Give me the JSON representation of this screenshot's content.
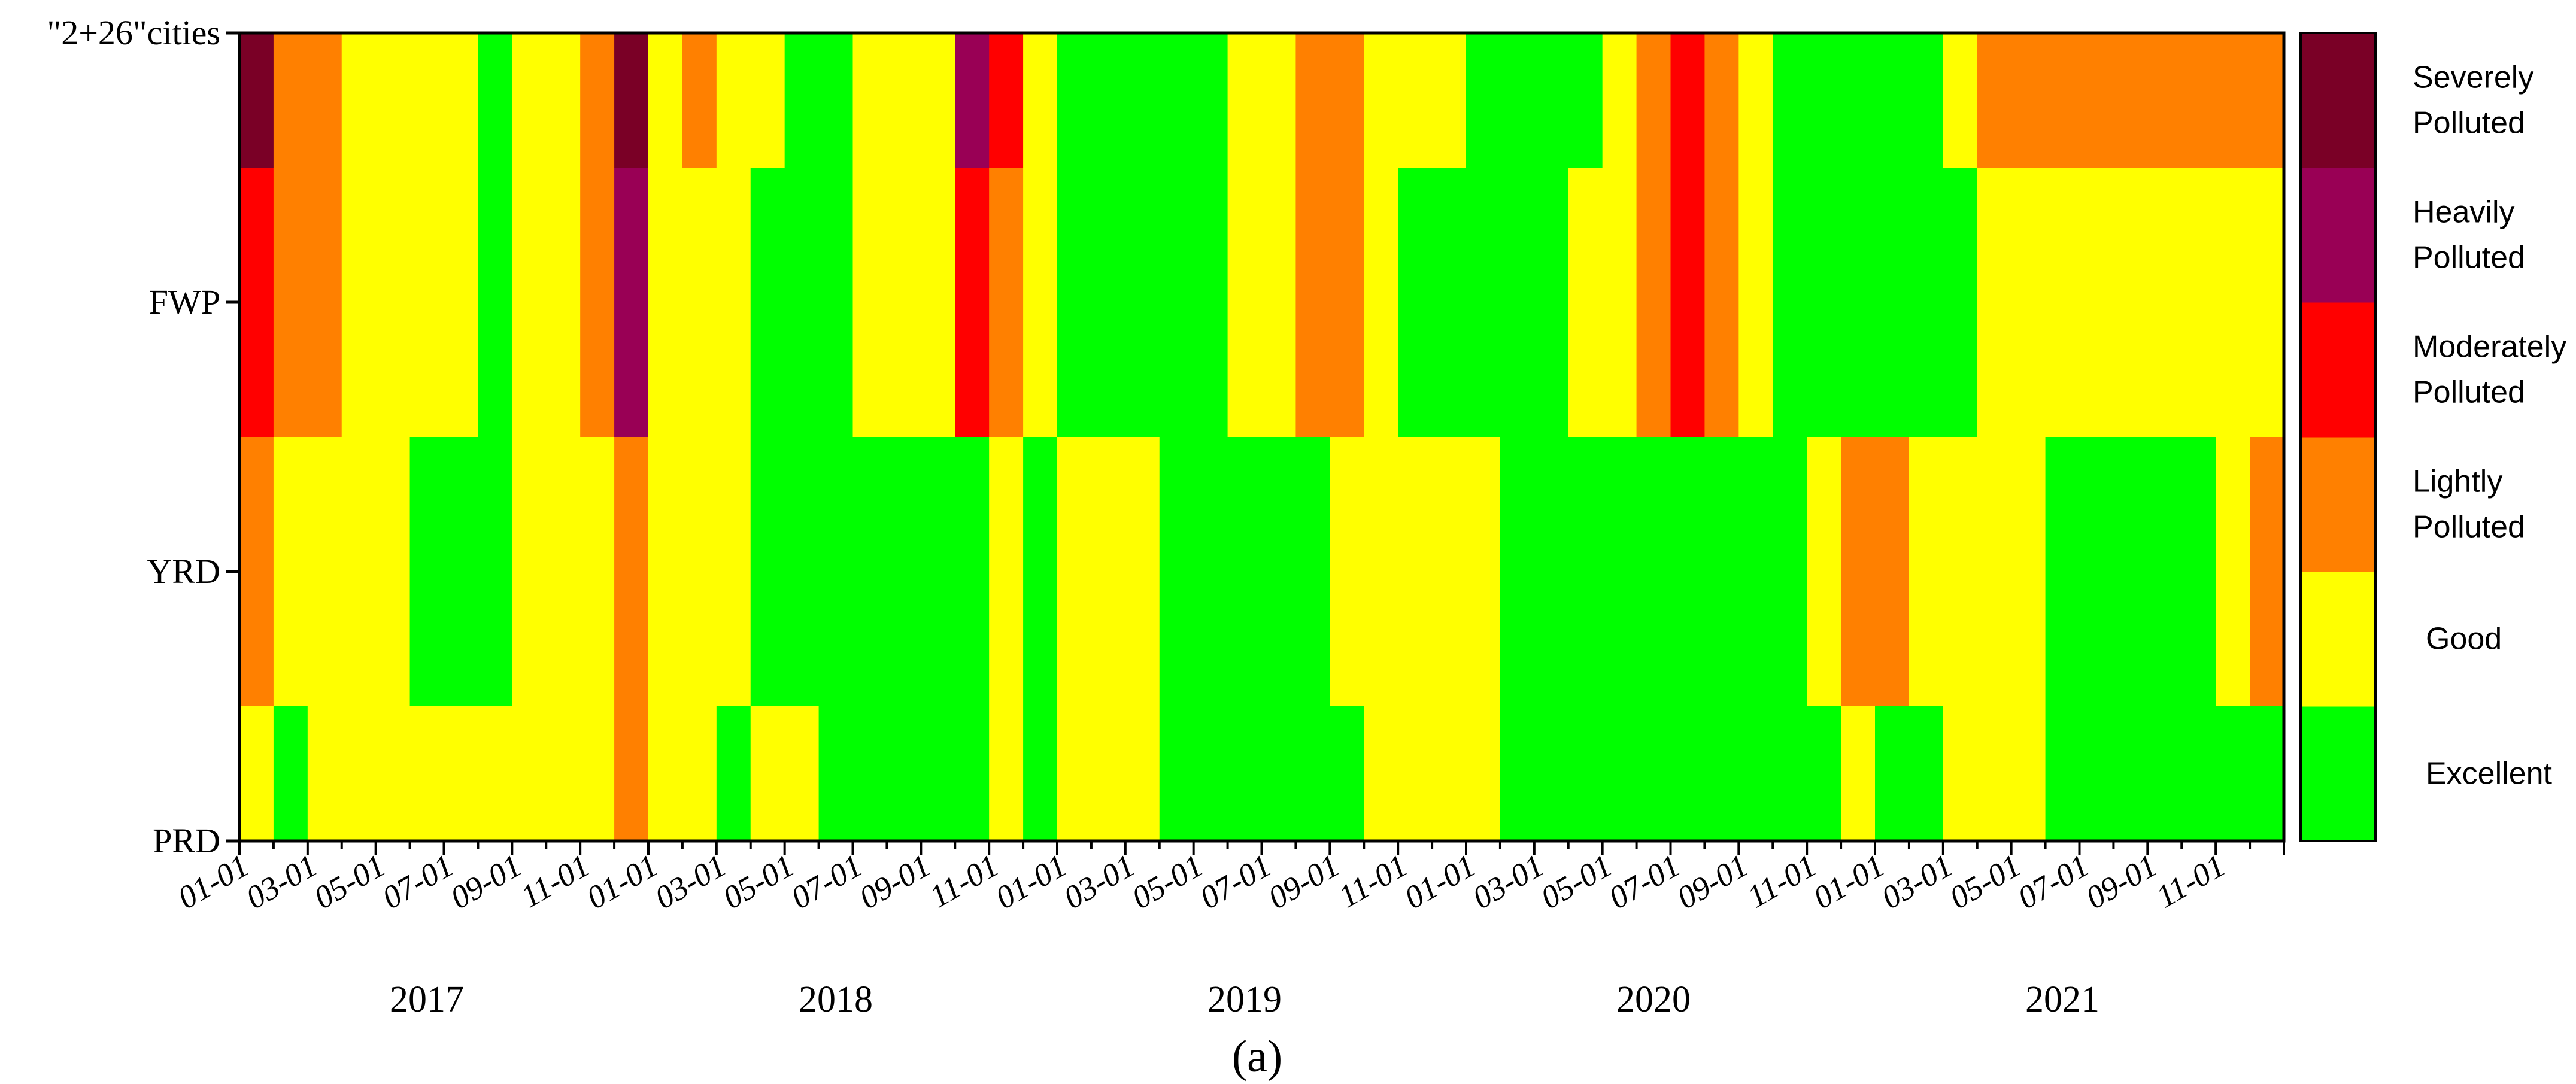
{
  "chart_data": {
    "type": "heatmap",
    "title": "",
    "caption": "(a)",
    "xlabel": "",
    "ylabel": "",
    "y_categories": [
      "PRD",
      "YRD",
      "FWP",
      "\"2+26\"cities"
    ],
    "month_tick_labels": [
      "01-01",
      "03-01",
      "05-01",
      "07-01",
      "09-01",
      "11-01"
    ],
    "years": [
      "2017",
      "2018",
      "2019",
      "2020",
      "2021"
    ],
    "x_range": [
      "2017-01-01",
      "2021-12-31"
    ],
    "levels": [
      {
        "value": 0,
        "label_lines": [
          "Excellent"
        ],
        "color": "#00ff00"
      },
      {
        "value": 1,
        "label_lines": [
          "Good"
        ],
        "color": "#ffff00"
      },
      {
        "value": 2,
        "label_lines": [
          "Lightly",
          "Polluted"
        ],
        "color": "#ff8000"
      },
      {
        "value": 3,
        "label_lines": [
          "Moderately",
          "Polluted"
        ],
        "color": "#ff0000"
      },
      {
        "value": 4,
        "label_lines": [
          "Heavily",
          "Polluted"
        ],
        "color": "#990055"
      },
      {
        "value": 5,
        "label_lines": [
          "Severely",
          "Polluted"
        ],
        "color": "#7a0026"
      }
    ],
    "series": [
      {
        "name": "PRD",
        "values": [
          1,
          0,
          1,
          1,
          1,
          1,
          1,
          1,
          1,
          1,
          1,
          2,
          1,
          1,
          0,
          1,
          1,
          0,
          0,
          0,
          0,
          0,
          1,
          0,
          1,
          1,
          1,
          0,
          0,
          0,
          0,
          0,
          0,
          1,
          1,
          1,
          1,
          0,
          0,
          0,
          0,
          0,
          0,
          0,
          0,
          0,
          0,
          1,
          0,
          0,
          1,
          1,
          1,
          0,
          0,
          0,
          0,
          0,
          0,
          0
        ]
      },
      {
        "name": "YRD",
        "values": [
          2,
          1,
          1,
          1,
          1,
          0,
          0,
          0,
          1,
          1,
          1,
          2,
          1,
          1,
          1,
          0,
          0,
          0,
          0,
          0,
          0,
          0,
          1,
          0,
          1,
          1,
          1,
          0,
          0,
          0,
          0,
          0,
          1,
          1,
          1,
          1,
          1,
          0,
          0,
          0,
          0,
          0,
          0,
          0,
          0,
          0,
          1,
          2,
          2,
          1,
          1,
          1,
          1,
          0,
          0,
          0,
          0,
          0,
          1,
          2
        ]
      },
      {
        "name": "FWP",
        "values": [
          3,
          2,
          2,
          1,
          1,
          1,
          1,
          0,
          1,
          1,
          2,
          4,
          1,
          1,
          1,
          0,
          0,
          0,
          1,
          1,
          1,
          3,
          2,
          1,
          0,
          0,
          0,
          0,
          0,
          1,
          1,
          2,
          2,
          1,
          0,
          0,
          0,
          0,
          0,
          1,
          1,
          2,
          3,
          2,
          1,
          0,
          0,
          0,
          0,
          0,
          0,
          1
        ]
      },
      {
        "name": "\"2+26\"cities",
        "values": [
          5,
          2,
          2,
          1,
          1,
          1,
          1,
          0,
          1,
          1,
          2,
          5,
          1,
          2,
          1,
          1,
          0,
          0,
          1,
          1,
          1,
          4,
          3,
          1,
          0,
          0,
          0,
          0,
          0,
          1,
          1,
          2,
          2,
          1,
          1,
          1,
          0,
          0,
          0,
          0,
          1,
          2,
          3,
          2,
          1,
          0,
          0,
          0,
          0,
          0,
          1,
          2
        ]
      }
    ],
    "grid": false,
    "legend": "right"
  }
}
